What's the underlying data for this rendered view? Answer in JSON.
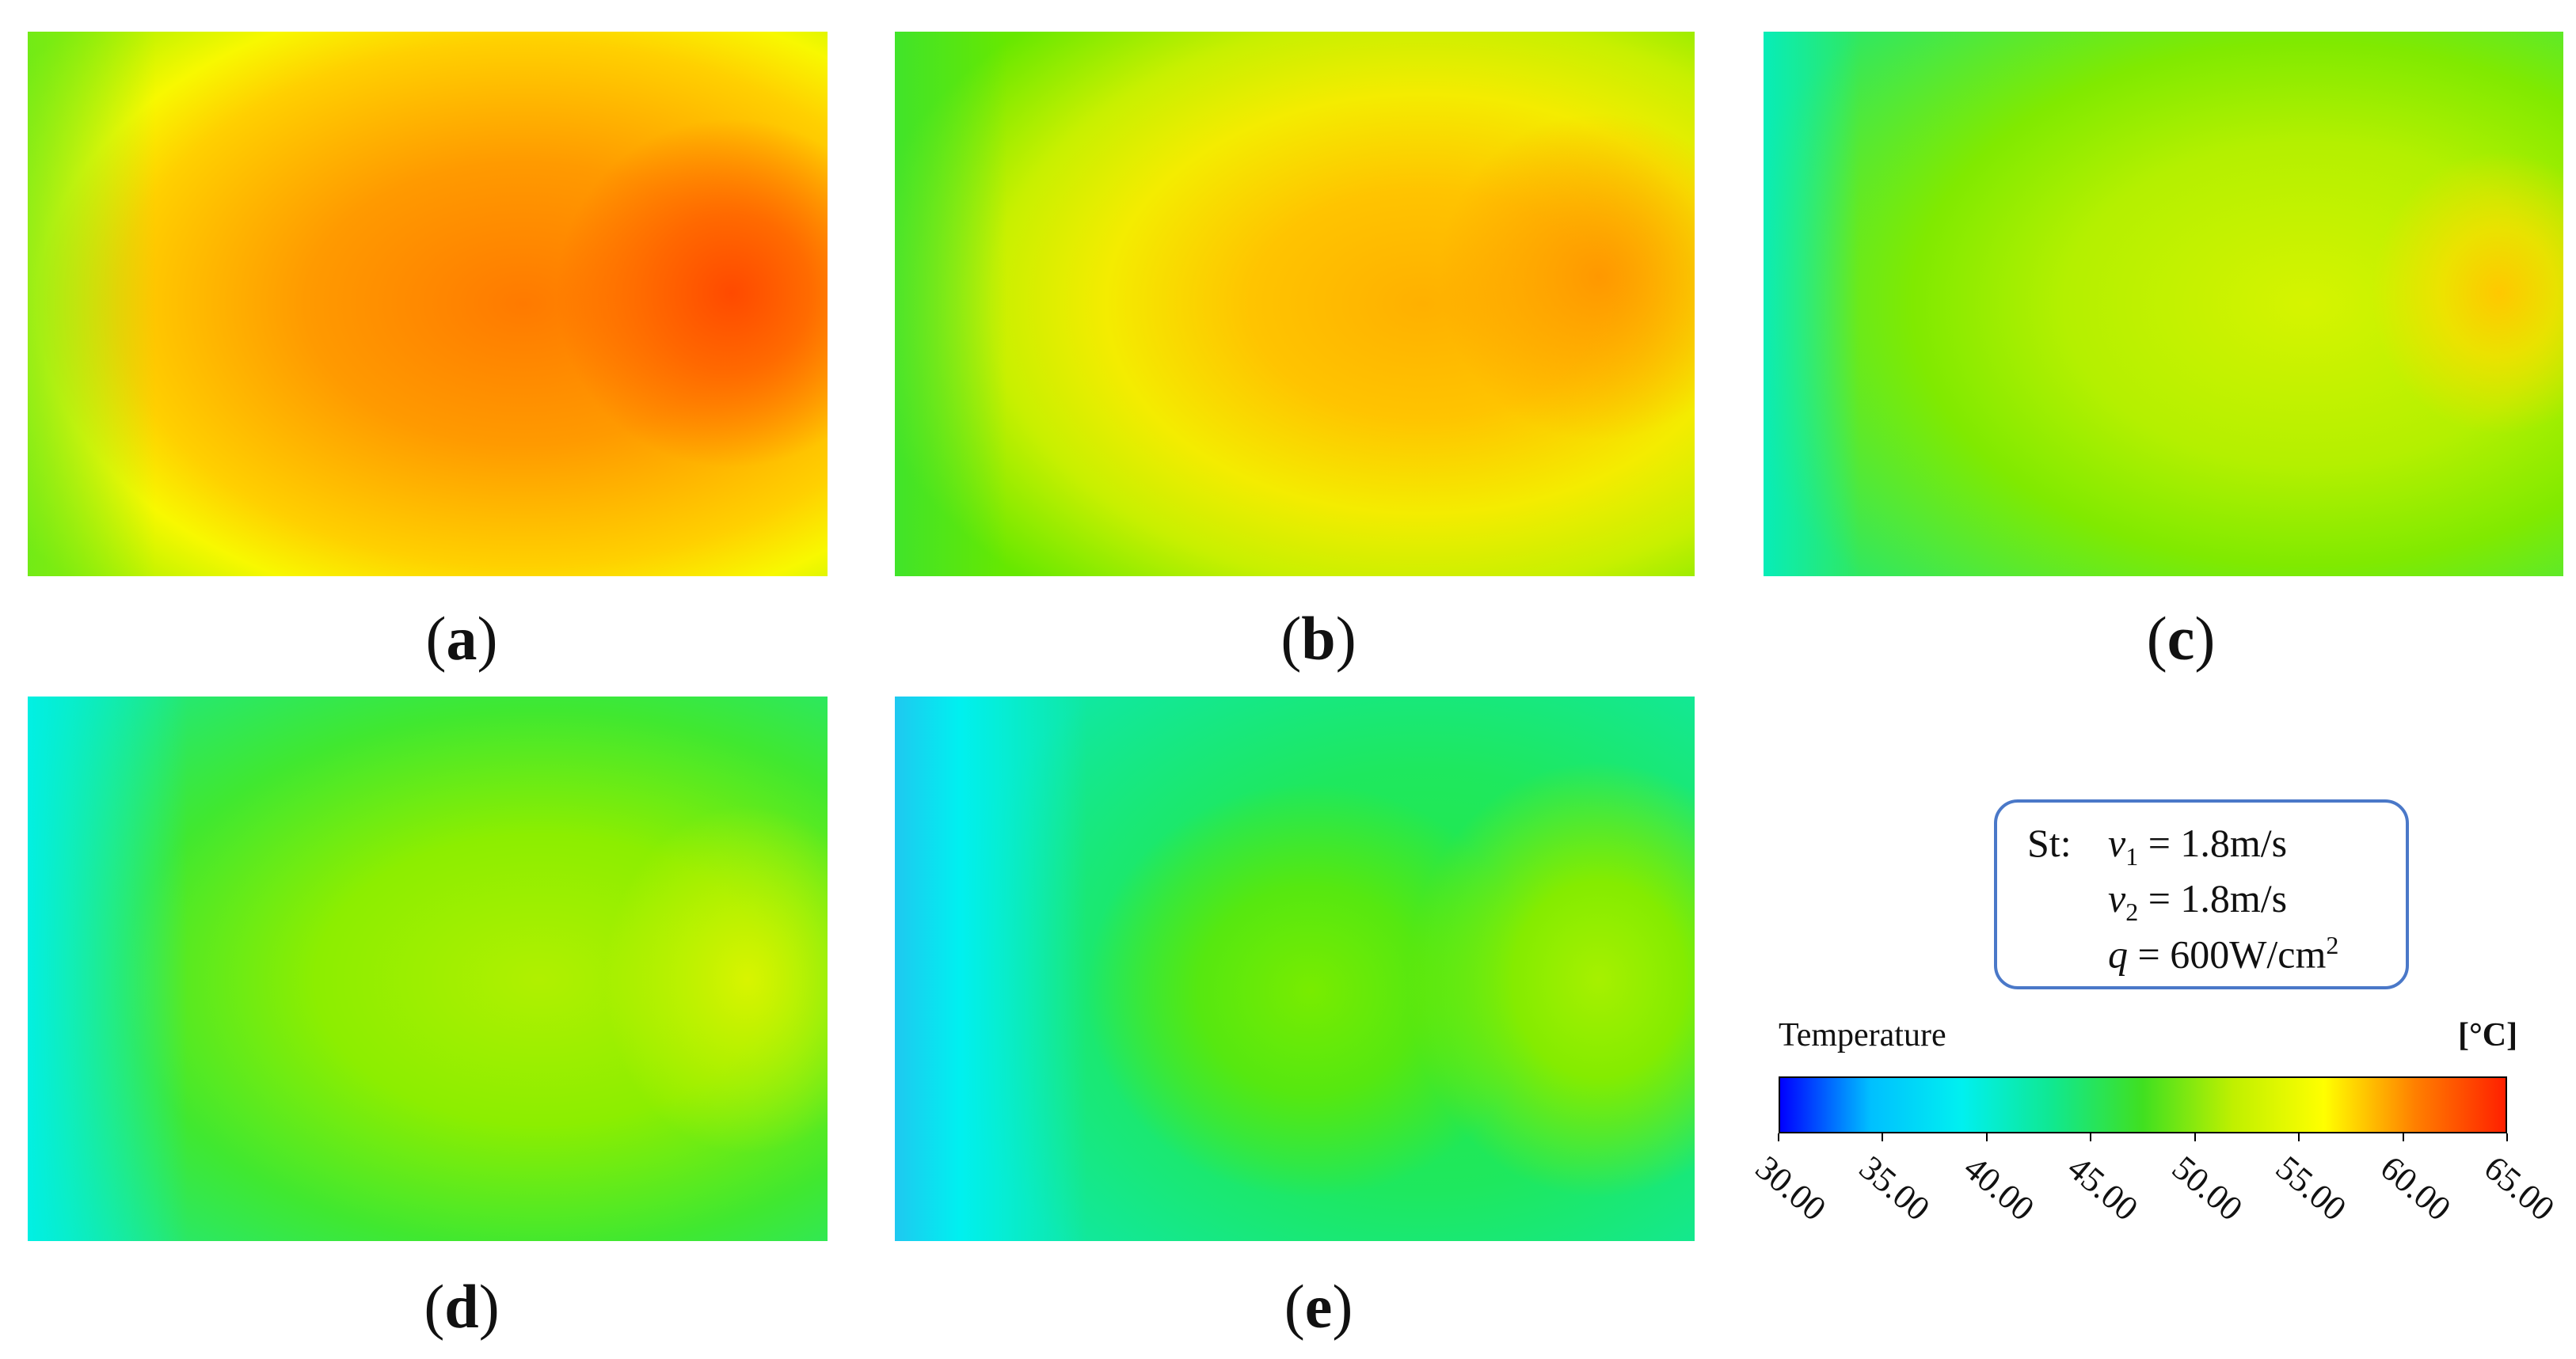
{
  "panels": [
    {
      "id": "a",
      "label": "a"
    },
    {
      "id": "b",
      "label": "b"
    },
    {
      "id": "c",
      "label": "c"
    },
    {
      "id": "d",
      "label": "d"
    },
    {
      "id": "e",
      "label": "e"
    }
  ],
  "legend": {
    "prefix": "St:",
    "v1_sym": "v",
    "v1_sub": "1",
    "v1_value": " = 1.8m/s",
    "v2_sym": "v",
    "v2_sub": "2",
    "v2_value": " = 1.8m/s",
    "q_sym": "q",
    "q_value": " = 600W/cm",
    "q_sup": "2"
  },
  "colorbar": {
    "title": "Temperature",
    "unit": "[°C]",
    "ticks": [
      "30.00",
      "35.00",
      "40.00",
      "45.00",
      "50.00",
      "55.00",
      "60.00",
      "65.00"
    ],
    "range": [
      30,
      65
    ],
    "colormap": [
      "#0000ff",
      "#00c0ff",
      "#00f0f0",
      "#10e890",
      "#40e020",
      "#c0f000",
      "#ffff00",
      "#ff8000",
      "#ff2000"
    ]
  }
}
